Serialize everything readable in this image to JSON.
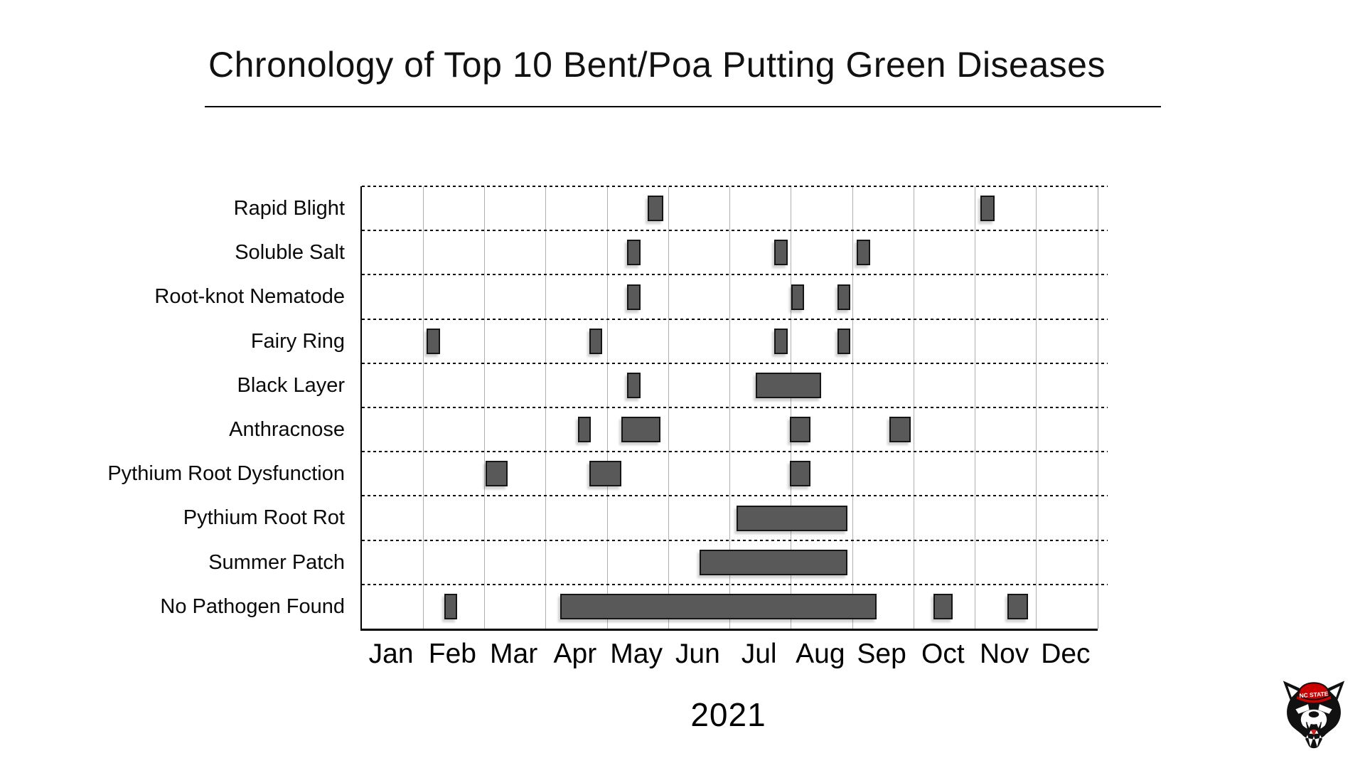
{
  "title": "Chronology of Top 10 Bent/Poa Putting Green Diseases",
  "year_label": "2021",
  "logo": {
    "name": "nc-state-wolf-logo",
    "hat_text": "NC STATE"
  },
  "colors": {
    "bar_fill": "#595959",
    "bar_border": "#161616",
    "month_gridline": "#b0b0b0",
    "row_gridline": "#000000",
    "axis_border": "#000000",
    "logo_red": "#cc0000",
    "logo_black": "#111111"
  },
  "chart_data": {
    "type": "gantt",
    "title": "Chronology of Top 10 Bent/Poa Putting Green Diseases",
    "xlabel": "2021",
    "x_axis": {
      "unit": "month",
      "range": [
        0,
        12
      ],
      "tick_labels": [
        "Jan",
        "Feb",
        "Mar",
        "Apr",
        "May",
        "Jun",
        "Jul",
        "Aug",
        "Sep",
        "Oct",
        "Nov",
        "Dec"
      ]
    },
    "grid": {
      "vertical": "solid-gray",
      "horizontal": "dotted-black"
    },
    "bar_note": "bar start/end expressed in months from Jan 1 (0 = Jan 1, 4.5 = mid May)",
    "rows": [
      {
        "label": "Rapid Blight",
        "bars": [
          [
            4.66,
            4.92
          ],
          [
            10.09,
            10.32
          ]
        ]
      },
      {
        "label": "Soluble Salt",
        "bars": [
          [
            4.33,
            4.55
          ],
          [
            6.73,
            6.95
          ],
          [
            8.07,
            8.29
          ]
        ]
      },
      {
        "label": "Root-knot Nematode",
        "bars": [
          [
            4.33,
            4.55
          ],
          [
            7.0,
            7.21
          ],
          [
            7.76,
            7.97
          ]
        ]
      },
      {
        "label": "Fairy Ring",
        "bars": [
          [
            1.05,
            1.27
          ],
          [
            3.71,
            3.92
          ],
          [
            6.73,
            6.94
          ],
          [
            7.76,
            7.97
          ]
        ]
      },
      {
        "label": "Black Layer",
        "bars": [
          [
            4.33,
            4.55
          ],
          [
            6.42,
            7.49
          ]
        ]
      },
      {
        "label": "Anthracnose",
        "bars": [
          [
            3.52,
            3.73
          ],
          [
            4.23,
            4.87
          ],
          [
            6.98,
            7.32
          ],
          [
            8.6,
            8.95
          ]
        ]
      },
      {
        "label": "Pythium Root Dysfunction",
        "bars": [
          [
            2.02,
            2.38
          ],
          [
            3.71,
            4.23
          ],
          [
            6.98,
            7.32
          ]
        ]
      },
      {
        "label": "Pythium Root Rot",
        "bars": [
          [
            6.11,
            7.92
          ]
        ]
      },
      {
        "label": "Summer Patch",
        "bars": [
          [
            5.51,
            7.92
          ]
        ]
      },
      {
        "label": "No Pathogen Found",
        "bars": [
          [
            1.34,
            1.55
          ],
          [
            3.23,
            8.4
          ],
          [
            9.32,
            9.63
          ],
          [
            10.53,
            10.86
          ]
        ]
      }
    ]
  }
}
